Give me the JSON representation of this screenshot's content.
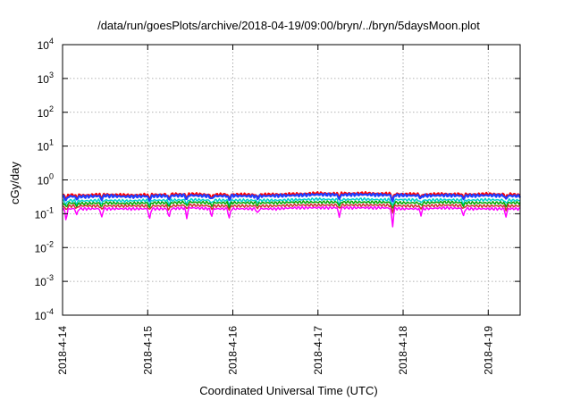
{
  "chart_data": {
    "type": "line",
    "title": "/data/run/goesPlots/archive/2018-04-19/09:00/bryn/../bryn/5daysMoon.plot",
    "xlabel": "Coordinated Universal Time (UTC)",
    "ylabel": "cGy/day",
    "yscale": "log",
    "ylim": [
      0.0001,
      10000
    ],
    "xlim": [
      "2018-04-14T00:00",
      "2018-04-19T09:00"
    ],
    "grid": true,
    "legend": "none",
    "x_ticks": [
      "2018-4-14",
      "2018-4-15",
      "2018-4-16",
      "2018-4-17",
      "2018-4-18",
      "2018-4-19"
    ],
    "y_ticks": [
      {
        "base": "10",
        "exp": "-4"
      },
      {
        "base": "10",
        "exp": "-3"
      },
      {
        "base": "10",
        "exp": "-2"
      },
      {
        "base": "10",
        "exp": "-1"
      },
      {
        "base": "10",
        "exp": "0"
      },
      {
        "base": "10",
        "exp": "1"
      },
      {
        "base": "10",
        "exp": "2"
      },
      {
        "base": "10",
        "exp": "3"
      },
      {
        "base": "10",
        "exp": "4"
      }
    ],
    "x": [
      "2018-04-14T00:00",
      "2018-04-14T06:00",
      "2018-04-14T12:00",
      "2018-04-14T18:00",
      "2018-04-15T00:00",
      "2018-04-15T06:00",
      "2018-04-15T12:00",
      "2018-04-15T18:00",
      "2018-04-16T00:00",
      "2018-04-16T06:00",
      "2018-04-16T12:00",
      "2018-04-16T18:00",
      "2018-04-17T00:00",
      "2018-04-17T06:00",
      "2018-04-17T12:00",
      "2018-04-17T18:00",
      "2018-04-18T00:00",
      "2018-04-18T06:00",
      "2018-04-18T12:00",
      "2018-04-18T18:00",
      "2018-04-19T00:00",
      "2018-04-19T06:00",
      "2018-04-19T09:00"
    ],
    "series": [
      {
        "color": "#ff0000",
        "values": [
          0.36,
          0.35,
          0.37,
          0.35,
          0.36,
          0.37,
          0.38,
          0.36,
          0.37,
          0.36,
          0.37,
          0.38,
          0.4,
          0.39,
          0.4,
          0.39,
          0.38,
          0.37,
          0.38,
          0.37,
          0.38,
          0.37,
          0.36
        ]
      },
      {
        "color": "#1f3fff",
        "values": [
          0.33,
          0.32,
          0.34,
          0.32,
          0.33,
          0.34,
          0.35,
          0.33,
          0.34,
          0.33,
          0.34,
          0.35,
          0.37,
          0.36,
          0.37,
          0.36,
          0.35,
          0.34,
          0.35,
          0.34,
          0.35,
          0.34,
          0.33
        ]
      },
      {
        "color": "#00d0d0",
        "values": [
          0.25,
          0.24,
          0.25,
          0.24,
          0.25,
          0.25,
          0.26,
          0.25,
          0.25,
          0.25,
          0.25,
          0.26,
          0.27,
          0.26,
          0.27,
          0.26,
          0.26,
          0.25,
          0.26,
          0.25,
          0.26,
          0.25,
          0.25
        ]
      },
      {
        "color": "#00aa00",
        "values": [
          0.21,
          0.2,
          0.21,
          0.2,
          0.21,
          0.21,
          0.22,
          0.21,
          0.21,
          0.21,
          0.21,
          0.22,
          0.22,
          0.22,
          0.22,
          0.22,
          0.21,
          0.21,
          0.22,
          0.21,
          0.21,
          0.21,
          0.21
        ]
      },
      {
        "color": "#cc3333",
        "values": [
          0.17,
          0.17,
          0.17,
          0.17,
          0.17,
          0.17,
          0.18,
          0.17,
          0.17,
          0.17,
          0.17,
          0.18,
          0.18,
          0.18,
          0.18,
          0.18,
          0.17,
          0.17,
          0.18,
          0.17,
          0.17,
          0.17,
          0.17
        ]
      },
      {
        "color": "#ff00ff",
        "values": [
          0.14,
          0.14,
          0.14,
          0.14,
          0.14,
          0.14,
          0.15,
          0.14,
          0.14,
          0.14,
          0.14,
          0.15,
          0.15,
          0.15,
          0.15,
          0.15,
          0.14,
          0.14,
          0.15,
          0.14,
          0.14,
          0.14,
          0.14
        ]
      }
    ],
    "dips": [
      {
        "x": "2018-04-14T01:00",
        "value": 0.06
      },
      {
        "x": "2018-04-14T04:00",
        "value": 0.09
      },
      {
        "x": "2018-04-14T11:00",
        "value": 0.07
      },
      {
        "x": "2018-04-15T00:30",
        "value": 0.06
      },
      {
        "x": "2018-04-15T06:00",
        "value": 0.07
      },
      {
        "x": "2018-04-15T11:00",
        "value": 0.07
      },
      {
        "x": "2018-04-15T18:00",
        "value": 0.08
      },
      {
        "x": "2018-04-15T23:00",
        "value": 0.07
      },
      {
        "x": "2018-04-16T07:00",
        "value": 0.1
      },
      {
        "x": "2018-04-17T06:00",
        "value": 0.07
      },
      {
        "x": "2018-04-17T21:00",
        "value": 0.03
      },
      {
        "x": "2018-04-18T05:00",
        "value": 0.09
      },
      {
        "x": "2018-04-18T17:00",
        "value": 0.08
      },
      {
        "x": "2018-04-19T05:00",
        "value": 0.08
      }
    ]
  }
}
